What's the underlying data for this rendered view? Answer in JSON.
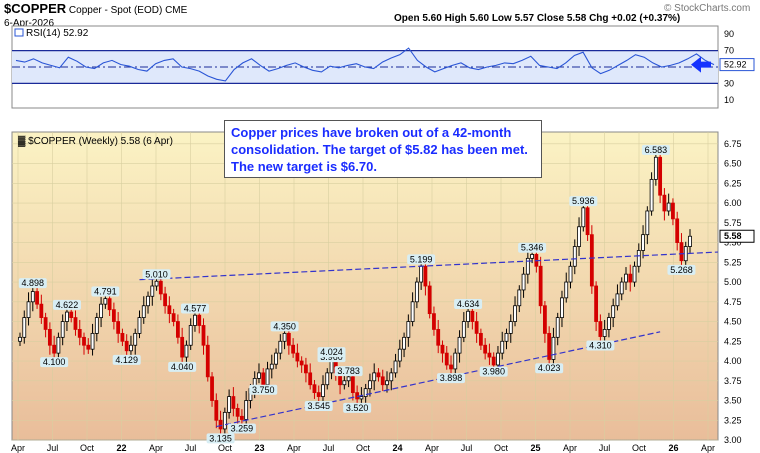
{
  "header": {
    "symbol": "$COPPER",
    "description": "Copper - Spot (EOD)",
    "exchange": "CME",
    "date": "6-Apr-2026",
    "ohlc": "Open 5.60  High 5.60  Low 5.57  Close 5.58  Chg +0.02 (+0.37%)",
    "watermark": "© StockCharts.com"
  },
  "annotation": "Copper prices have broken out of a 42-month consolidation.  The target of $5.82 has been met.  The new target is $6.70.",
  "colors": {
    "up": "#000000",
    "down": "#d40000",
    "rsi": "#2a55d6",
    "trend": "#3333cc",
    "arrow": "#1533ff"
  },
  "chart_data": [
    {
      "type": "line",
      "title": "RSI(14) 52.92",
      "yticks": [
        "90",
        "70",
        "50",
        "30",
        "10"
      ],
      "ylim": [
        0,
        100
      ],
      "levels": [
        70,
        30
      ],
      "last_value": "52.92",
      "series": [
        {
          "name": "RSI(14)",
          "values": [
            58,
            56,
            60,
            55,
            52,
            49,
            62,
            57,
            50,
            48,
            55,
            58,
            53,
            51,
            47,
            45,
            54,
            58,
            60,
            50,
            48,
            45,
            39,
            35,
            33,
            47,
            55,
            60,
            52,
            45,
            48,
            52,
            55,
            50,
            46,
            44,
            51,
            49,
            52,
            54,
            50,
            48,
            56,
            61,
            65,
            73,
            58,
            50,
            44,
            48,
            52,
            55,
            49,
            47,
            50,
            52,
            55,
            54,
            58,
            63,
            52,
            50,
            48,
            55,
            64,
            68,
            49,
            42,
            46,
            52,
            58,
            65,
            62,
            55,
            50,
            52,
            55,
            60,
            66,
            58,
            52.92
          ]
        }
      ]
    },
    {
      "type": "candlestick",
      "title": "$COPPER (Weekly) 5.58 (6 Apr)",
      "ylim": [
        3.0,
        6.9
      ],
      "yticks": [
        "6.75",
        "6.50",
        "6.25",
        "6.00",
        "5.75",
        "5.50",
        "5.25",
        "5.00",
        "4.75",
        "4.50",
        "4.25",
        "4.00",
        "3.75",
        "3.50",
        "3.25",
        "3.00"
      ],
      "xticks": [
        "Apr",
        "Jul",
        "Oct",
        "22",
        "Apr",
        "Jul",
        "Oct",
        "23",
        "Apr",
        "Jul",
        "Oct",
        "24",
        "Apr",
        "Jul",
        "Oct",
        "25",
        "Apr",
        "Jul",
        "Oct",
        "26",
        "Apr"
      ],
      "last_price": "5.58",
      "closes": [
        4.3,
        4.55,
        4.75,
        4.88,
        4.72,
        4.55,
        4.4,
        4.2,
        4.1,
        4.3,
        4.5,
        4.62,
        4.55,
        4.4,
        4.3,
        4.2,
        4.15,
        4.35,
        4.55,
        4.72,
        4.79,
        4.65,
        4.5,
        4.35,
        4.25,
        4.13,
        4.2,
        4.35,
        4.55,
        4.7,
        4.82,
        4.95,
        5.01,
        4.85,
        4.7,
        4.6,
        4.5,
        4.3,
        4.05,
        4.2,
        4.45,
        4.58,
        4.45,
        4.2,
        3.8,
        3.5,
        3.25,
        3.14,
        3.35,
        3.55,
        3.4,
        3.3,
        3.26,
        3.5,
        3.65,
        3.78,
        3.85,
        3.7,
        3.9,
        3.96,
        4.1,
        4.25,
        4.35,
        4.2,
        4.1,
        4.0,
        3.95,
        3.85,
        3.7,
        3.6,
        3.55,
        3.7,
        3.85,
        4.02,
        3.85,
        3.7,
        3.75,
        3.8,
        3.6,
        3.52,
        3.55,
        3.65,
        3.75,
        3.85,
        3.8,
        3.7,
        3.75,
        3.85,
        4.0,
        4.15,
        4.3,
        4.5,
        4.75,
        5.0,
        5.2,
        4.95,
        4.6,
        4.4,
        4.2,
        4.1,
        3.95,
        3.9,
        4.1,
        4.3,
        4.5,
        4.63,
        4.5,
        4.35,
        4.2,
        4.1,
        4.05,
        3.95,
        4.1,
        4.25,
        4.35,
        4.5,
        4.7,
        4.9,
        5.1,
        5.3,
        5.35,
        5.2,
        4.7,
        4.35,
        4.02,
        4.3,
        4.55,
        4.8,
        5.0,
        5.2,
        5.45,
        5.7,
        5.94,
        5.6,
        4.95,
        4.5,
        4.31,
        4.4,
        4.55,
        4.7,
        4.85,
        5.0,
        5.1,
        5.0,
        5.2,
        5.4,
        5.6,
        5.9,
        6.3,
        6.58,
        6.1,
        5.9,
        6.0,
        5.8,
        5.5,
        5.27,
        5.45,
        5.58
      ],
      "labels": [
        {
          "text": "4.898",
          "kind": "peak"
        },
        {
          "text": "4.622",
          "kind": "peak"
        },
        {
          "text": "4.791",
          "kind": "peak"
        },
        {
          "text": "5.010",
          "kind": "peak"
        },
        {
          "text": "4.577",
          "kind": "peak"
        },
        {
          "text": "4.100",
          "kind": "trough"
        },
        {
          "text": "3.980",
          "kind": "trough"
        },
        {
          "text": "4.129",
          "kind": "trough"
        },
        {
          "text": "4.040",
          "kind": "trough"
        },
        {
          "text": "4.350",
          "kind": "peak"
        },
        {
          "text": "3.960",
          "kind": "peak"
        },
        {
          "text": "3.783",
          "kind": "peak"
        },
        {
          "text": "4.024",
          "kind": "peak"
        },
        {
          "text": "3.545",
          "kind": "trough"
        },
        {
          "text": "3.520",
          "kind": "trough"
        },
        {
          "text": "3.259",
          "kind": "trough"
        },
        {
          "text": "3.135",
          "kind": "trough"
        },
        {
          "text": "5.199",
          "kind": "peak"
        },
        {
          "text": "4.634",
          "kind": "peak"
        },
        {
          "text": "3.898",
          "kind": "trough"
        },
        {
          "text": "3.750",
          "kind": "trough"
        },
        {
          "text": "5.346",
          "kind": "peak"
        },
        {
          "text": "4.023",
          "kind": "trough"
        },
        {
          "text": "5.936",
          "kind": "peak"
        },
        {
          "text": "4.310",
          "kind": "trough"
        },
        {
          "text": "6.583",
          "kind": "peak"
        },
        {
          "text": "5.268",
          "kind": "trough"
        }
      ],
      "trendlines": [
        {
          "name": "upper",
          "points": [
            [
              0,
              5.03
            ],
            [
              1,
              5.38
            ]
          ]
        },
        {
          "name": "lower",
          "points": [
            [
              0,
              3.17
            ],
            [
              1,
              4.37
            ]
          ]
        }
      ]
    }
  ]
}
